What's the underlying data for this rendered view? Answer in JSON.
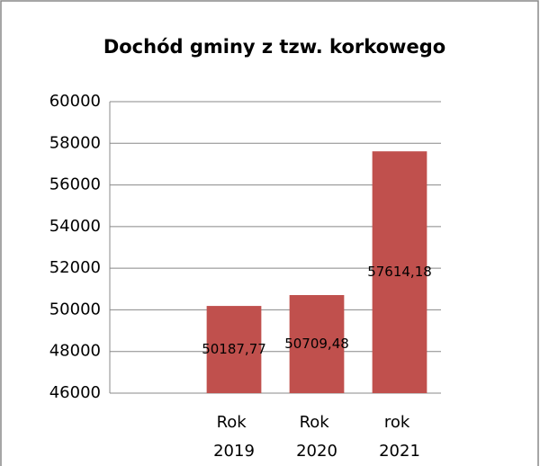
{
  "chart_data": {
    "type": "bar",
    "title": "Dochód gminy z tzw. korkowego",
    "categories": [
      null,
      "Rok 2019",
      "Rok 2020",
      "rok 2021"
    ],
    "values": [
      null,
      50187.77,
      50709.48,
      57614.18
    ],
    "value_labels": [
      null,
      "50187,77",
      "50709,48",
      "57614,18"
    ],
    "color": "#c0504d",
    "ylim": [
      46000,
      60000
    ],
    "yticks": [
      46000,
      48000,
      50000,
      52000,
      54000,
      56000,
      58000,
      60000
    ],
    "grid": true
  }
}
